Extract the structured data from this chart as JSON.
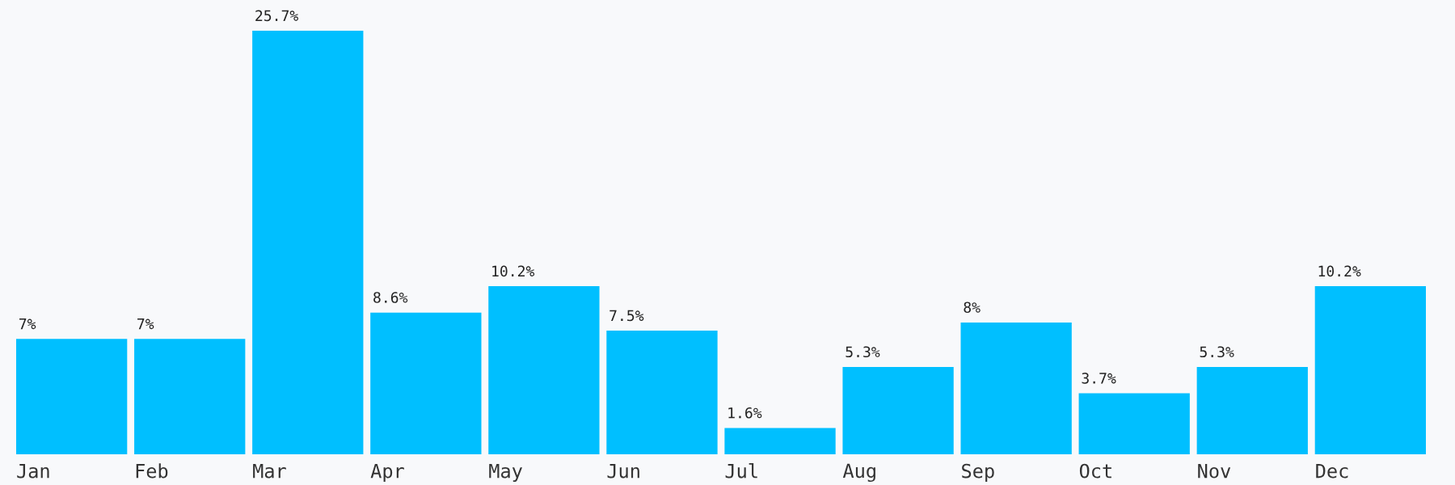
{
  "chart_data": {
    "type": "bar",
    "categories": [
      "Jan",
      "Feb",
      "Mar",
      "Apr",
      "May",
      "Jun",
      "Jul",
      "Aug",
      "Sep",
      "Oct",
      "Nov",
      "Dec"
    ],
    "values": [
      7,
      7,
      25.7,
      8.6,
      10.2,
      7.5,
      1.6,
      5.3,
      8,
      3.7,
      5.3,
      10.2
    ],
    "value_labels": [
      "7%",
      "7%",
      "25.7%",
      "8.6%",
      "10.2%",
      "7.5%",
      "1.6%",
      "5.3%",
      "8%",
      "3.7%",
      "5.3%",
      "10.2%"
    ],
    "color": "#00bfff",
    "grid": false,
    "legend": false
  }
}
